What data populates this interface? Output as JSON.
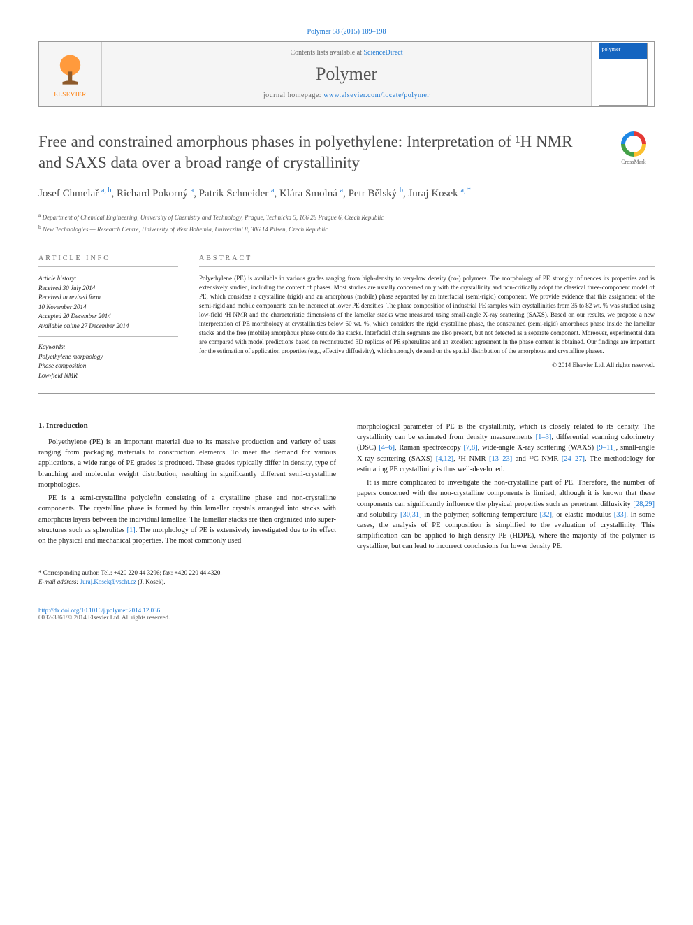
{
  "citation": "Polymer 58 (2015) 189–198",
  "header": {
    "contents_prefix": "Contents lists available at ",
    "contents_link": "ScienceDirect",
    "journal": "Polymer",
    "homepage_prefix": "journal homepage: ",
    "homepage_url": "www.elsevier.com/locate/polymer",
    "elsevier_label": "ELSEVIER"
  },
  "title": "Free and constrained amorphous phases in polyethylene: Interpretation of ¹H NMR and SAXS data over a broad range of crystallinity",
  "crossmark_label": "CrossMark",
  "authors_html": "Josef Chmelař <sup>a, b</sup>, Richard Pokorný <sup>a</sup>, Patrik Schneider <sup>a</sup>, Klára Smolná <sup>a</sup>, Petr Bělský <sup>b</sup>, Juraj Kosek <sup>a, *</sup>",
  "affiliations": {
    "a": "Department of Chemical Engineering, University of Chemistry and Technology, Prague, Technicka 5, 166 28 Prague 6, Czech Republic",
    "b": "New Technologies — Research Centre, University of West Bohemia, Univerzitni 8, 306 14 Pilsen, Czech Republic"
  },
  "info": {
    "heading": "ARTICLE INFO",
    "history_label": "Article history:",
    "history": [
      "Received 30 July 2014",
      "Received in revised form",
      "10 November 2014",
      "Accepted 20 December 2014",
      "Available online 27 December 2014"
    ],
    "keywords_label": "Keywords:",
    "keywords": [
      "Polyethylene morphology",
      "Phase composition",
      "Low-field NMR"
    ]
  },
  "abstract": {
    "heading": "ABSTRACT",
    "text": "Polyethylene (PE) is available in various grades ranging from high-density to very-low density (co-) polymers. The morphology of PE strongly influences its properties and is extensively studied, including the content of phases. Most studies are usually concerned only with the crystallinity and non-critically adopt the classical three-component model of PE, which considers a crystalline (rigid) and an amorphous (mobile) phase separated by an interfacial (semi-rigid) component. We provide evidence that this assignment of the semi-rigid and mobile components can be incorrect at lower PE densities. The phase composition of industrial PE samples with crystallinities from 35 to 82 wt. % was studied using low-field ¹H NMR and the characteristic dimensions of the lamellar stacks were measured using small-angle X-ray scattering (SAXS). Based on our results, we propose a new interpretation of PE morphology at crystallinities below 60 wt. %, which considers the rigid crystalline phase, the constrained (semi-rigid) amorphous phase inside the lamellar stacks and the free (mobile) amorphous phase outside the stacks. Interfacial chain segments are also present, but not detected as a separate component. Moreover, experimental data are compared with model predictions based on reconstructed 3D replicas of PE spherulites and an excellent agreement in the phase content is obtained. Our findings are important for the estimation of application properties (e.g., effective diffusivity), which strongly depend on the spatial distribution of the amorphous and crystalline phases.",
    "copyright": "© 2014 Elsevier Ltd. All rights reserved."
  },
  "section1": {
    "heading": "1. Introduction",
    "p1": "Polyethylene (PE) is an important material due to its massive production and variety of uses ranging from packaging materials to construction elements. To meet the demand for various applications, a wide range of PE grades is produced. These grades typically differ in density, type of branching and molecular weight distribution, resulting in significantly different semi-crystalline morphologies.",
    "p2_a": "PE is a semi-crystalline polyolefin consisting of a crystalline phase and non-crystalline components. The crystalline phase is formed by thin lamellar crystals arranged into stacks with amorphous layers between the individual lamellae. The lamellar stacks are then organized into super-structures such as spherulites ",
    "p2_ref1": "[1]",
    "p2_b": ". The morphology of PE is extensively investigated due to its effect on the physical and mechanical properties. The most commonly used",
    "p3_a": "morphological parameter of PE is the crystallinity, which is closely related to its density. The crystallinity can be estimated from density measurements ",
    "p3_ref1": "[1–3]",
    "p3_b": ", differential scanning calorimetry (DSC) ",
    "p3_ref2": "[4–6]",
    "p3_c": ", Raman spectroscopy ",
    "p3_ref3": "[7,8]",
    "p3_d": ", wide-angle X-ray scattering (WAXS) ",
    "p3_ref4": "[9–11]",
    "p3_e": ", small-angle X-ray scattering (SAXS) ",
    "p3_ref5": "[4,12]",
    "p3_f": ", ¹H NMR ",
    "p3_ref6": "[13–23]",
    "p3_g": " and ¹³C NMR ",
    "p3_ref7": "[24–27]",
    "p3_h": ". The methodology for estimating PE crystallinity is thus well-developed.",
    "p4_a": "It is more complicated to investigate the non-crystalline part of PE. Therefore, the number of papers concerned with the non-crystalline components is limited, although it is known that these components can significantly influence the physical properties such as penetrant diffusivity ",
    "p4_ref1": "[28,29]",
    "p4_b": " and solubility ",
    "p4_ref2": "[30,31]",
    "p4_c": " in the polymer, softening temperature ",
    "p4_ref3": "[32]",
    "p4_d": ", or elastic modulus ",
    "p4_ref4": "[33]",
    "p4_e": ". In some cases, the analysis of PE composition is simplified to the evaluation of crystallinity. This simplification can be applied to high-density PE (HDPE), where the majority of the polymer is crystalline, but can lead to incorrect conclusions for lower density PE."
  },
  "footnotes": {
    "corr": "* Corresponding author. Tel.: +420 220 44 3296; fax: +420 220 44 4320.",
    "email_label": "E-mail address: ",
    "email": "Juraj.Kosek@vscht.cz",
    "email_suffix": " (J. Kosek)."
  },
  "footer": {
    "doi": "http://dx.doi.org/10.1016/j.polymer.2014.12.036",
    "issn_line": "0032-3861/© 2014 Elsevier Ltd. All rights reserved."
  }
}
